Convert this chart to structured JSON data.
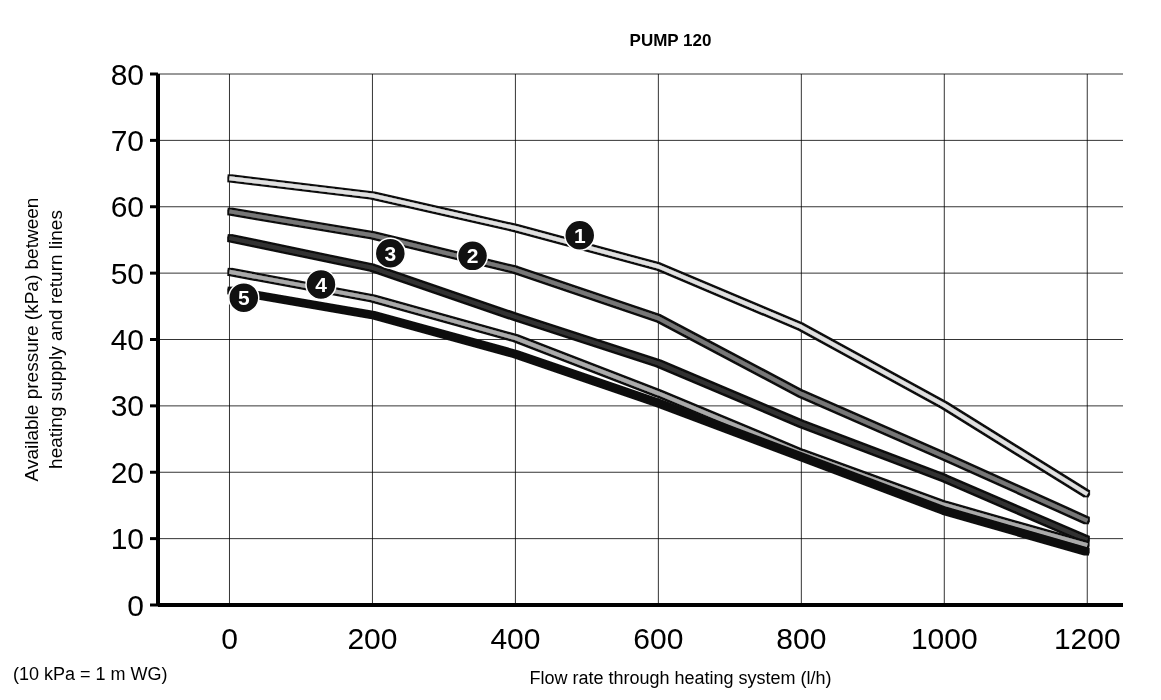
{
  "chart_data": {
    "type": "line",
    "title": "PUMP 120",
    "xlabel": "Flow rate through heating system (l/h)",
    "ylabel": "Available pressure (kPa) between\nheating supply and return lines",
    "x": [
      0,
      200,
      400,
      600,
      800,
      1000,
      1200
    ],
    "series": [
      {
        "color": "#e0e0e0",
        "values": [
          64.3,
          61.7,
          56.8,
          51,
          41.9,
          30.1,
          16.7
        ]
      },
      {
        "color": "#777777",
        "values": [
          59.3,
          55.7,
          50.5,
          43.2,
          31.8,
          22.4,
          12.7
        ]
      },
      {
        "color": "#333333",
        "values": [
          55.3,
          50.8,
          43.4,
          36.4,
          27.3,
          19.1,
          9.8
        ]
      },
      {
        "color": "#aaaaaa",
        "values": [
          50.2,
          46.2,
          40.2,
          31.9,
          22.9,
          15.1,
          9
        ]
      },
      {
        "color": "#111111",
        "values": [
          47.4,
          43.7,
          37.8,
          30.4,
          22.3,
          14.2,
          8
        ]
      }
    ],
    "xlim": [
      -100,
      1250
    ],
    "xticks": [
      0,
      200,
      400,
      600,
      800,
      1000,
      1200
    ],
    "ylim": [
      0,
      80
    ],
    "yticks": [
      0,
      10,
      20,
      30,
      40,
      50,
      60,
      70,
      80
    ],
    "grid": true,
    "marker": "none",
    "line_style": "solid",
    "annotations": [
      {
        "text": "1",
        "x": 490,
        "y": 55.7
      },
      {
        "text": "2",
        "x": 340,
        "y": 52.6
      },
      {
        "text": "3",
        "x": 225,
        "y": 53
      },
      {
        "text": "4",
        "x": 128,
        "y": 48.3
      },
      {
        "text": "5",
        "x": 20,
        "y": 46.3
      },
      "(10 kPa = 1 m WG)"
    ]
  }
}
